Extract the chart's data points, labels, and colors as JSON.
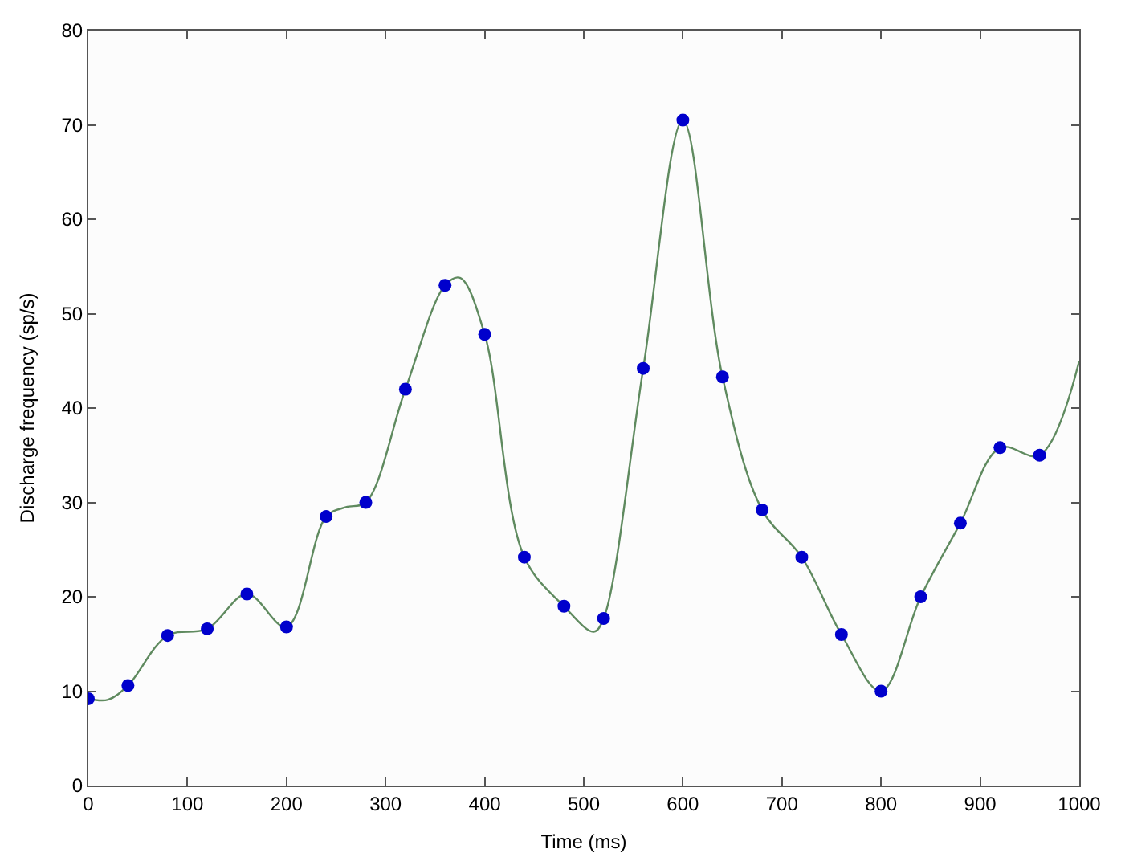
{
  "chart_data": {
    "type": "scatter",
    "xlabel": "Time (ms)",
    "ylabel": "Discharge frequency (sp/s)",
    "xlim": [
      0,
      1000
    ],
    "xticks": [
      0,
      100,
      200,
      300,
      400,
      500,
      600,
      700,
      800,
      900,
      1000
    ],
    "ylim": [
      0,
      80
    ],
    "yticks": [
      0,
      10,
      20,
      30,
      40,
      50,
      60,
      70,
      80
    ],
    "grid": false,
    "marker": "circle",
    "series": [
      {
        "type": "line",
        "color": "#5f8a5f",
        "line_style": "solid",
        "marker": "none",
        "x": [
          0,
          20,
          40,
          80,
          120,
          160,
          200,
          240,
          260,
          280,
          320,
          360,
          375,
          400,
          440,
          480,
          510,
          520,
          560,
          600,
          640,
          680,
          720,
          760,
          800,
          840,
          880,
          920,
          960,
          1000
        ],
        "values": [
          9.2,
          9.1,
          10.6,
          15.9,
          16.6,
          20.3,
          16.8,
          28.5,
          29.5,
          30,
          42,
          53,
          53.8,
          47.8,
          24.2,
          19,
          16.3,
          17.7,
          44.2,
          70.5,
          43.3,
          29.2,
          24.2,
          16,
          10,
          20,
          27.8,
          35.8,
          35,
          45
        ]
      },
      {
        "color": "#0000cc",
        "x": [
          0,
          40,
          80,
          120,
          160,
          200,
          240,
          280,
          320,
          360,
          400,
          440,
          480,
          520,
          560,
          600,
          640,
          680,
          720,
          760,
          800,
          840,
          880,
          920,
          960
        ],
        "values": [
          9.2,
          10.6,
          15.9,
          16.6,
          20.3,
          16.8,
          28.5,
          30,
          42,
          53,
          47.8,
          24.2,
          19,
          17.7,
          44.2,
          70.5,
          43.3,
          29.2,
          24.2,
          16,
          10,
          20,
          27.8,
          35.8,
          35
        ]
      }
    ]
  }
}
